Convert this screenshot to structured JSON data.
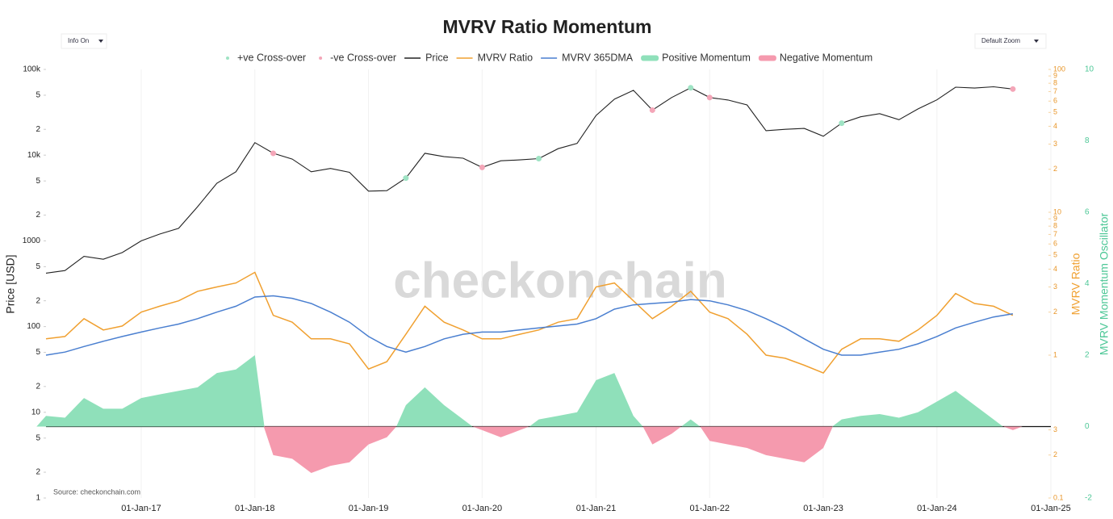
{
  "controls": {
    "info_toggle": "Info On",
    "zoom": "Default Zoom"
  },
  "chart_data": {
    "type": "line",
    "title": "MVRV Ratio Momentum",
    "watermark": "checkonchain",
    "source": "Source: checkonchain.com",
    "y_label": "Price [USD]",
    "y2_label": "MVRV Ratio",
    "y3_label": "MVRV Momentum Oscillator",
    "ylog": true,
    "y2log": true,
    "grid": true,
    "xlim": [
      "2016-03-01",
      "2025-01-01"
    ],
    "xticks": [
      {
        "value": "2017-01-01",
        "label": "01-Jan-17"
      },
      {
        "value": "2018-01-01",
        "label": "01-Jan-18"
      },
      {
        "value": "2019-01-01",
        "label": "01-Jan-19"
      },
      {
        "value": "2020-01-01",
        "label": "01-Jan-20"
      },
      {
        "value": "2021-01-01",
        "label": "01-Jan-21"
      },
      {
        "value": "2022-01-01",
        "label": "01-Jan-22"
      },
      {
        "value": "2023-01-01",
        "label": "01-Jan-23"
      },
      {
        "value": "2024-01-01",
        "label": "01-Jan-24"
      },
      {
        "value": "2025-01-01",
        "label": "01-Jan-25"
      }
    ],
    "ylim": [
      1,
      100000
    ],
    "yticks": [
      1,
      {
        "value": 2,
        "label": "2"
      },
      {
        "value": 5,
        "label": "5"
      },
      10,
      {
        "value": 20,
        "label": "2"
      },
      {
        "value": 50,
        "label": "5"
      },
      100,
      {
        "value": 200,
        "label": "2"
      },
      {
        "value": 500,
        "label": "5"
      },
      1000,
      {
        "value": 2000,
        "label": "2"
      },
      {
        "value": 5000,
        "label": "5"
      },
      {
        "value": 10000,
        "label": "10k"
      },
      {
        "value": 20000,
        "label": "2"
      },
      {
        "value": 50000,
        "label": "5"
      },
      {
        "value": 100000,
        "label": "100k"
      }
    ],
    "y2lim": [
      0.1,
      100
    ],
    "y2ticks": [
      0.1,
      {
        "value": 0.2,
        "label": "2"
      },
      {
        "value": 0.3,
        "label": "3"
      },
      1,
      2,
      3,
      4,
      5,
      6,
      7,
      8,
      9,
      10,
      {
        "value": 20,
        "label": "2"
      },
      {
        "value": 30,
        "label": "3"
      },
      {
        "value": 40,
        "label": "4"
      },
      {
        "value": 50,
        "label": "5"
      },
      {
        "value": 60,
        "label": "6"
      },
      {
        "value": 70,
        "label": "7"
      },
      {
        "value": 80,
        "label": "8"
      },
      {
        "value": 90,
        "label": "9"
      },
      100
    ],
    "y3lim": [
      -2,
      10
    ],
    "y3ticks": [
      -2,
      0,
      2,
      4,
      6,
      8,
      10
    ],
    "x": [
      "2016-03-01",
      "2016-05-01",
      "2016-07-01",
      "2016-09-01",
      "2016-11-01",
      "2017-01-01",
      "2017-03-01",
      "2017-05-01",
      "2017-07-01",
      "2017-09-01",
      "2017-11-01",
      "2018-01-01",
      "2018-03-01",
      "2018-05-01",
      "2018-07-01",
      "2018-09-01",
      "2018-11-01",
      "2019-01-01",
      "2019-03-01",
      "2019-05-01",
      "2019-07-01",
      "2019-09-01",
      "2019-11-01",
      "2020-01-01",
      "2020-03-01",
      "2020-05-01",
      "2020-07-01",
      "2020-09-01",
      "2020-11-01",
      "2021-01-01",
      "2021-03-01",
      "2021-05-01",
      "2021-07-01",
      "2021-09-01",
      "2021-11-01",
      "2022-01-01",
      "2022-03-01",
      "2022-05-01",
      "2022-07-01",
      "2022-09-01",
      "2022-11-01",
      "2023-01-01",
      "2023-03-01",
      "2023-05-01",
      "2023-07-01",
      "2023-09-01",
      "2023-11-01",
      "2024-01-01",
      "2024-03-01",
      "2024-05-01",
      "2024-07-01",
      "2024-09-01"
    ],
    "series": [
      {
        "name": "+ve Cross-over",
        "style": "marker",
        "axis": "y",
        "color": "#9fe3c4",
        "values": [
          null,
          null,
          null,
          null,
          null,
          null,
          null,
          null,
          null,
          null,
          null,
          null,
          null,
          null,
          null,
          null,
          null,
          null,
          null,
          5400,
          null,
          null,
          null,
          null,
          null,
          null,
          9100,
          null,
          null,
          null,
          null,
          null,
          null,
          null,
          61000,
          null,
          null,
          null,
          null,
          null,
          null,
          null,
          23600,
          null,
          null,
          null,
          null,
          null,
          null,
          null,
          null,
          null
        ]
      },
      {
        "name": "-ve Cross-over",
        "style": "marker",
        "axis": "y",
        "color": "#f4a6b8",
        "values": [
          null,
          null,
          null,
          null,
          null,
          null,
          null,
          null,
          null,
          null,
          null,
          null,
          10500,
          null,
          null,
          null,
          null,
          null,
          null,
          null,
          null,
          null,
          null,
          7200,
          null,
          null,
          null,
          null,
          null,
          null,
          null,
          null,
          33500,
          null,
          null,
          47000,
          null,
          null,
          null,
          null,
          null,
          null,
          null,
          null,
          null,
          null,
          null,
          null,
          null,
          null,
          null,
          59000
        ]
      },
      {
        "name": "Price",
        "style": "line",
        "axis": "y",
        "color": "#222222",
        "values": [
          420,
          450,
          660,
          610,
          730,
          1000,
          1200,
          1400,
          2500,
          4700,
          6400,
          14000,
          10500,
          9000,
          6400,
          7000,
          6300,
          3800,
          3850,
          5400,
          10500,
          9600,
          9200,
          7200,
          8600,
          8800,
          9100,
          11900,
          13700,
          29000,
          45000,
          57000,
          33500,
          47000,
          61000,
          47000,
          44000,
          38500,
          19300,
          20000,
          20500,
          16600,
          23600,
          28000,
          30500,
          25900,
          34600,
          44200,
          62000,
          60600,
          62700,
          59000
        ]
      },
      {
        "name": "MVRV Ratio",
        "style": "line",
        "axis": "y2",
        "color": "#f0a030",
        "values": [
          1.3,
          1.35,
          1.8,
          1.5,
          1.6,
          2.0,
          2.2,
          2.4,
          2.8,
          3.0,
          3.2,
          3.8,
          1.9,
          1.7,
          1.3,
          1.3,
          1.2,
          0.8,
          0.9,
          1.4,
          2.2,
          1.7,
          1.5,
          1.3,
          1.3,
          1.4,
          1.5,
          1.7,
          1.8,
          3.0,
          3.2,
          2.4,
          1.8,
          2.2,
          2.8,
          2.0,
          1.8,
          1.4,
          1.0,
          0.95,
          0.85,
          0.75,
          1.1,
          1.3,
          1.3,
          1.25,
          1.5,
          1.9,
          2.7,
          2.3,
          2.2,
          1.9
        ]
      },
      {
        "name": "MVRV 365DMA",
        "style": "line",
        "axis": "y2",
        "color": "#4a7fd0",
        "values": [
          1.0,
          1.05,
          1.15,
          1.25,
          1.35,
          1.45,
          1.55,
          1.65,
          1.8,
          2.0,
          2.2,
          2.55,
          2.6,
          2.5,
          2.3,
          2.0,
          1.7,
          1.35,
          1.15,
          1.05,
          1.15,
          1.3,
          1.4,
          1.45,
          1.45,
          1.5,
          1.55,
          1.6,
          1.65,
          1.8,
          2.1,
          2.25,
          2.3,
          2.35,
          2.45,
          2.4,
          2.25,
          2.05,
          1.8,
          1.55,
          1.3,
          1.1,
          1.0,
          1.0,
          1.05,
          1.1,
          1.2,
          1.35,
          1.55,
          1.7,
          1.85,
          1.95
        ]
      },
      {
        "name": "Positive Momentum",
        "style": "area",
        "axis": "y3",
        "color": "#8fe0ba",
        "values": [
          0.3,
          0.25,
          0.8,
          0.5,
          0.5,
          0.8,
          0.9,
          1.0,
          1.1,
          1.5,
          1.6,
          2.0,
          null,
          null,
          null,
          null,
          null,
          null,
          null,
          0.6,
          1.1,
          0.6,
          0.2,
          null,
          null,
          null,
          0.2,
          0.3,
          0.4,
          1.3,
          1.5,
          0.3,
          null,
          null,
          0.2,
          null,
          null,
          null,
          null,
          null,
          null,
          null,
          0.2,
          0.3,
          0.35,
          0.25,
          0.4,
          0.7,
          1.0,
          0.6,
          0.2,
          null
        ]
      },
      {
        "name": "Negative Momentum",
        "style": "area",
        "axis": "y3",
        "color": "#f59aae",
        "values": [
          null,
          null,
          null,
          null,
          null,
          null,
          null,
          null,
          null,
          null,
          null,
          null,
          -0.8,
          -0.9,
          -1.3,
          -1.1,
          -1.0,
          -0.5,
          -0.3,
          null,
          null,
          null,
          null,
          -0.1,
          -0.3,
          -0.1,
          null,
          null,
          null,
          null,
          null,
          null,
          -0.5,
          -0.2,
          null,
          -0.4,
          -0.5,
          -0.6,
          -0.8,
          -0.9,
          -1.0,
          -0.6,
          null,
          null,
          null,
          null,
          null,
          null,
          null,
          null,
          null,
          -0.1
        ]
      }
    ]
  }
}
